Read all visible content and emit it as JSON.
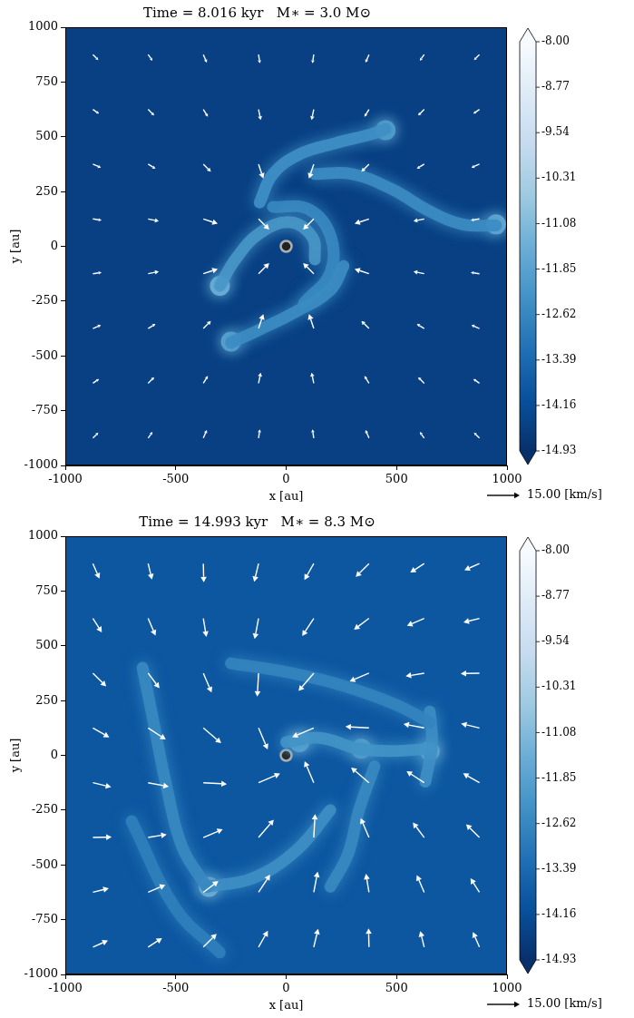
{
  "chart_data": [
    {
      "type": "quiver",
      "title": "Time = 8.016 kyr   M∗ = 3.0 M⊙",
      "x_label": "x [au]",
      "y_label": "y [au]",
      "xlim": [
        -1000,
        1000
      ],
      "ylim": [
        -1000,
        1000
      ],
      "xticks": [
        -1000,
        -500,
        0,
        500,
        1000
      ],
      "yticks": [
        -1000,
        -750,
        -500,
        -250,
        0,
        250,
        500,
        750,
        1000
      ],
      "grid": false,
      "colorbar": {
        "range": [
          -14.93,
          -8
        ],
        "ticks": [
          {
            "value": -8,
            "label": "-8.00"
          },
          -8.77,
          -9.54,
          -10.31,
          -11.08,
          -11.85,
          -12.62,
          -13.39,
          -14.16,
          -14.93
        ]
      },
      "background_density": -14.5,
      "filaments": [
        {
          "density": -12.4,
          "points": [
            [
              -120,
              200
            ],
            [
              -60,
              330
            ],
            [
              60,
              420
            ],
            [
              220,
              470
            ],
            [
              380,
              510
            ],
            [
              450,
              535
            ]
          ]
        },
        {
          "density": -12.5,
          "points": [
            [
              130,
              330
            ],
            [
              300,
              330
            ],
            [
              480,
              260
            ],
            [
              650,
              160
            ],
            [
              800,
              100
            ],
            [
              950,
              95
            ]
          ]
        },
        {
          "density": -12.2,
          "points": [
            [
              -300,
              -180
            ],
            [
              -230,
              -60
            ],
            [
              -120,
              60
            ],
            [
              20,
              110
            ],
            [
              120,
              40
            ],
            [
              130,
              -60
            ]
          ]
        },
        {
          "density": -12.5,
          "points": [
            [
              260,
              -90
            ],
            [
              200,
              -200
            ],
            [
              40,
              -300
            ],
            [
              -120,
              -380
            ],
            [
              -250,
              -440
            ]
          ]
        },
        {
          "density": -12.6,
          "points": [
            [
              -60,
              180
            ],
            [
              100,
              170
            ],
            [
              200,
              50
            ],
            [
              200,
              -120
            ],
            [
              80,
              -260
            ]
          ]
        }
      ],
      "clumps": [
        {
          "x": -300,
          "y": -180,
          "density": -11.4
        },
        {
          "x": -250,
          "y": -435,
          "density": -11.8
        },
        {
          "x": 950,
          "y": 100,
          "density": -11.6
        },
        {
          "x": 450,
          "y": 530,
          "density": -12.0
        }
      ],
      "star": {
        "x": 0,
        "y": 0
      },
      "vectors": [
        [
          -875,
          875,
          2.5,
          -2.5
        ],
        [
          -625,
          875,
          2.0,
          -2.8
        ],
        [
          -375,
          875,
          1.6,
          -3.7
        ],
        [
          -125,
          875,
          0.6,
          -4.0
        ],
        [
          125,
          875,
          -0.6,
          -4.0
        ],
        [
          375,
          875,
          -1.6,
          -3.7
        ],
        [
          625,
          875,
          -2.0,
          -2.8
        ],
        [
          875,
          875,
          -2.5,
          -2.5
        ],
        [
          -875,
          625,
          2.8,
          -2.0
        ],
        [
          -625,
          625,
          2.8,
          -2.8
        ],
        [
          -375,
          625,
          2.1,
          -3.4
        ],
        [
          -125,
          625,
          1.0,
          -4.9
        ],
        [
          125,
          625,
          -1.0,
          -4.9
        ],
        [
          375,
          625,
          -2.1,
          -3.4
        ],
        [
          625,
          625,
          -2.8,
          -2.8
        ],
        [
          875,
          625,
          -2.8,
          -2.0
        ],
        [
          -875,
          375,
          3.7,
          -1.6
        ],
        [
          -625,
          375,
          3.4,
          -2.1
        ],
        [
          -375,
          375,
          3.5,
          -3.5
        ],
        [
          -125,
          375,
          2.2,
          -6.6
        ],
        [
          125,
          375,
          -2.2,
          -6.6
        ],
        [
          375,
          375,
          -3.5,
          -3.5
        ],
        [
          625,
          375,
          -3.4,
          -2.1
        ],
        [
          875,
          375,
          -3.7,
          -1.6
        ],
        [
          -875,
          125,
          4.0,
          -0.6
        ],
        [
          -625,
          125,
          4.9,
          -1.0
        ],
        [
          -375,
          125,
          6.6,
          -2.2
        ],
        [
          -125,
          125,
          4.9,
          -4.9
        ],
        [
          125,
          125,
          -4.9,
          -4.9
        ],
        [
          375,
          125,
          -6.6,
          -2.2
        ],
        [
          625,
          125,
          -4.9,
          -1.0
        ],
        [
          875,
          125,
          -4.0,
          -0.6
        ],
        [
          -875,
          -125,
          4.0,
          0.6
        ],
        [
          -625,
          -125,
          4.9,
          1.0
        ],
        [
          -375,
          -125,
          6.6,
          2.2
        ],
        [
          -125,
          -125,
          4.9,
          4.9
        ],
        [
          125,
          -125,
          -4.9,
          4.9
        ],
        [
          375,
          -125,
          -6.6,
          2.2
        ],
        [
          625,
          -125,
          -4.9,
          1.0
        ],
        [
          875,
          -125,
          -4.0,
          0.6
        ],
        [
          -875,
          -375,
          3.7,
          1.6
        ],
        [
          -625,
          -375,
          3.4,
          2.1
        ],
        [
          -375,
          -375,
          3.5,
          3.5
        ],
        [
          -125,
          -375,
          2.2,
          6.6
        ],
        [
          125,
          -375,
          -2.2,
          6.6
        ],
        [
          375,
          -375,
          -3.5,
          3.5
        ],
        [
          625,
          -375,
          -3.4,
          2.1
        ],
        [
          875,
          -375,
          -3.7,
          1.6
        ],
        [
          -875,
          -625,
          2.8,
          2.0
        ],
        [
          -625,
          -625,
          2.8,
          2.8
        ],
        [
          -375,
          -625,
          2.1,
          3.4
        ],
        [
          -125,
          -625,
          1.0,
          4.9
        ],
        [
          125,
          -625,
          -1.0,
          4.9
        ],
        [
          375,
          -625,
          -2.1,
          3.4
        ],
        [
          625,
          -625,
          -2.8,
          2.8
        ],
        [
          875,
          -625,
          -2.8,
          2.0
        ],
        [
          -875,
          -875,
          2.5,
          2.5
        ],
        [
          -625,
          -875,
          2.0,
          2.8
        ],
        [
          -375,
          -875,
          1.6,
          3.7
        ],
        [
          -125,
          -875,
          0.6,
          4.0
        ],
        [
          125,
          -875,
          -0.6,
          4.0
        ],
        [
          375,
          -875,
          -1.6,
          3.7
        ],
        [
          625,
          -875,
          -2.0,
          2.8
        ],
        [
          875,
          -875,
          -2.5,
          2.5
        ]
      ],
      "key": {
        "speed": 15,
        "label": "15.00 [km/s]"
      }
    },
    {
      "type": "quiver",
      "title": "Time = 14.993 kyr   M∗ = 8.3 M⊙",
      "x_label": "x [au]",
      "y_label": "y [au]",
      "xlim": [
        -1000,
        1000
      ],
      "ylim": [
        -1000,
        1000
      ],
      "xticks": [
        -1000,
        -500,
        0,
        500,
        1000
      ],
      "yticks": [
        -1000,
        -750,
        -500,
        -250,
        0,
        250,
        500,
        750,
        1000
      ],
      "grid": false,
      "colorbar": {
        "range": [
          -14.93,
          -8
        ],
        "ticks": [
          {
            "value": -8,
            "label": "-8.00"
          },
          -8.77,
          -9.54,
          -10.31,
          -11.08,
          -11.85,
          -12.62,
          -13.39,
          -14.16,
          -14.93
        ]
      },
      "background_density": -13.9,
      "filaments": [
        {
          "density": -12.6,
          "points": [
            [
              -650,
              400
            ],
            [
              -600,
              150
            ],
            [
              -540,
              -150
            ],
            [
              -470,
              -420
            ],
            [
              -360,
              -600
            ]
          ]
        },
        {
          "density": -12.4,
          "points": [
            [
              -360,
              -600
            ],
            [
              -150,
              -560
            ],
            [
              50,
              -430
            ],
            [
              200,
              -250
            ]
          ]
        },
        {
          "density": -12.7,
          "points": [
            [
              -250,
              420
            ],
            [
              0,
              380
            ],
            [
              250,
              320
            ],
            [
              500,
              230
            ],
            [
              650,
              150
            ]
          ]
        },
        {
          "density": -12.3,
          "points": [
            [
              0,
              60
            ],
            [
              150,
              80
            ],
            [
              330,
              30
            ],
            [
              480,
              20
            ],
            [
              650,
              30
            ]
          ]
        },
        {
          "density": -12.4,
          "points": [
            [
              650,
              200
            ],
            [
              660,
              50
            ],
            [
              630,
              -120
            ]
          ]
        },
        {
          "density": -12.6,
          "points": [
            [
              400,
              -50
            ],
            [
              330,
              -250
            ],
            [
              280,
              -450
            ],
            [
              200,
              -600
            ]
          ]
        },
        {
          "density": -12.8,
          "points": [
            [
              -700,
              -300
            ],
            [
              -500,
              -700
            ],
            [
              -300,
              -900
            ]
          ]
        }
      ],
      "clumps": [
        {
          "x": -350,
          "y": -600,
          "density": -11.0
        },
        {
          "x": 650,
          "y": 20,
          "density": -11.4
        },
        {
          "x": 340,
          "y": 30,
          "density": -11.9
        },
        {
          "x": 60,
          "y": 60,
          "density": -11.8
        }
      ],
      "star": {
        "x": 0,
        "y": 0
      },
      "vectors": [
        [
          -875,
          875,
          3.0,
          -6.9
        ],
        [
          -625,
          875,
          1.8,
          -7.3
        ],
        [
          -375,
          875,
          0.2,
          -8.6
        ],
        [
          -125,
          875,
          -2.0,
          -8.4
        ],
        [
          125,
          875,
          -4.3,
          -7.5
        ],
        [
          375,
          875,
          -6.1,
          -6.1
        ],
        [
          625,
          875,
          -6.4,
          -4.1
        ],
        [
          875,
          875,
          -6.9,
          -3.0
        ],
        [
          -875,
          625,
          4.1,
          -6.4
        ],
        [
          -625,
          625,
          3.4,
          -7.9
        ],
        [
          -375,
          625,
          1.4,
          -8.5
        ],
        [
          -125,
          625,
          -1.8,
          -9.5
        ],
        [
          125,
          625,
          -5.3,
          -8.1
        ],
        [
          375,
          625,
          -6.9,
          -5.2
        ],
        [
          625,
          625,
          -7.9,
          -3.4
        ],
        [
          875,
          625,
          -7.3,
          -1.8
        ],
        [
          -875,
          375,
          6.1,
          -6.1
        ],
        [
          -625,
          375,
          5.2,
          -6.9
        ],
        [
          -375,
          375,
          3.8,
          -8.9
        ],
        [
          -125,
          375,
          -0.6,
          -10.8
        ],
        [
          125,
          375,
          -7.0,
          -8.2
        ],
        [
          375,
          375,
          -8.9,
          -3.8
        ],
        [
          625,
          375,
          -8.5,
          -1.4
        ],
        [
          875,
          375,
          -8.6,
          -0.2
        ],
        [
          -875,
          125,
          7.5,
          -4.3
        ],
        [
          -625,
          125,
          8.1,
          -5.3
        ],
        [
          -375,
          125,
          8.2,
          -7.0
        ],
        [
          -125,
          125,
          4.2,
          -9.9
        ],
        [
          125,
          125,
          -9.9,
          -4.2
        ],
        [
          375,
          125,
          -10.8,
          0.6
        ],
        [
          625,
          125,
          -9.5,
          1.8
        ],
        [
          875,
          125,
          -8.4,
          2.0
        ],
        [
          -875,
          -125,
          8.4,
          -2.0
        ],
        [
          -625,
          -125,
          9.5,
          -1.8
        ],
        [
          -375,
          -125,
          10.8,
          -0.6
        ],
        [
          -125,
          -125,
          9.9,
          4.2
        ],
        [
          125,
          -125,
          -4.2,
          9.9
        ],
        [
          375,
          -125,
          -8.2,
          7.0
        ],
        [
          625,
          -125,
          -8.1,
          5.3
        ],
        [
          875,
          -125,
          -7.5,
          4.3
        ],
        [
          -875,
          -375,
          8.6,
          0.2
        ],
        [
          -625,
          -375,
          8.5,
          1.4
        ],
        [
          -375,
          -375,
          8.9,
          3.8
        ],
        [
          -125,
          -375,
          7.0,
          8.2
        ],
        [
          125,
          -375,
          0.6,
          10.8
        ],
        [
          375,
          -375,
          -3.8,
          8.9
        ],
        [
          625,
          -375,
          -5.2,
          6.9
        ],
        [
          875,
          -375,
          -6.1,
          6.1
        ],
        [
          -875,
          -625,
          7.3,
          1.8
        ],
        [
          -625,
          -625,
          7.9,
          3.4
        ],
        [
          -375,
          -625,
          6.9,
          5.2
        ],
        [
          -125,
          -625,
          5.3,
          8.1
        ],
        [
          125,
          -625,
          1.8,
          9.5
        ],
        [
          375,
          -625,
          -1.4,
          8.5
        ],
        [
          625,
          -625,
          -3.4,
          7.9
        ],
        [
          875,
          -625,
          -4.1,
          6.4
        ],
        [
          -875,
          -875,
          6.9,
          3.0
        ],
        [
          -625,
          -875,
          6.4,
          4.1
        ],
        [
          -375,
          -875,
          6.1,
          6.1
        ],
        [
          -125,
          -875,
          4.3,
          7.5
        ],
        [
          125,
          -875,
          2.0,
          8.4
        ],
        [
          375,
          -875,
          -0.2,
          8.6
        ],
        [
          625,
          -875,
          -1.8,
          7.3
        ],
        [
          875,
          -875,
          -3.0,
          6.9
        ]
      ],
      "key": {
        "speed": 15,
        "label": "15.00 [km/s]"
      }
    }
  ]
}
